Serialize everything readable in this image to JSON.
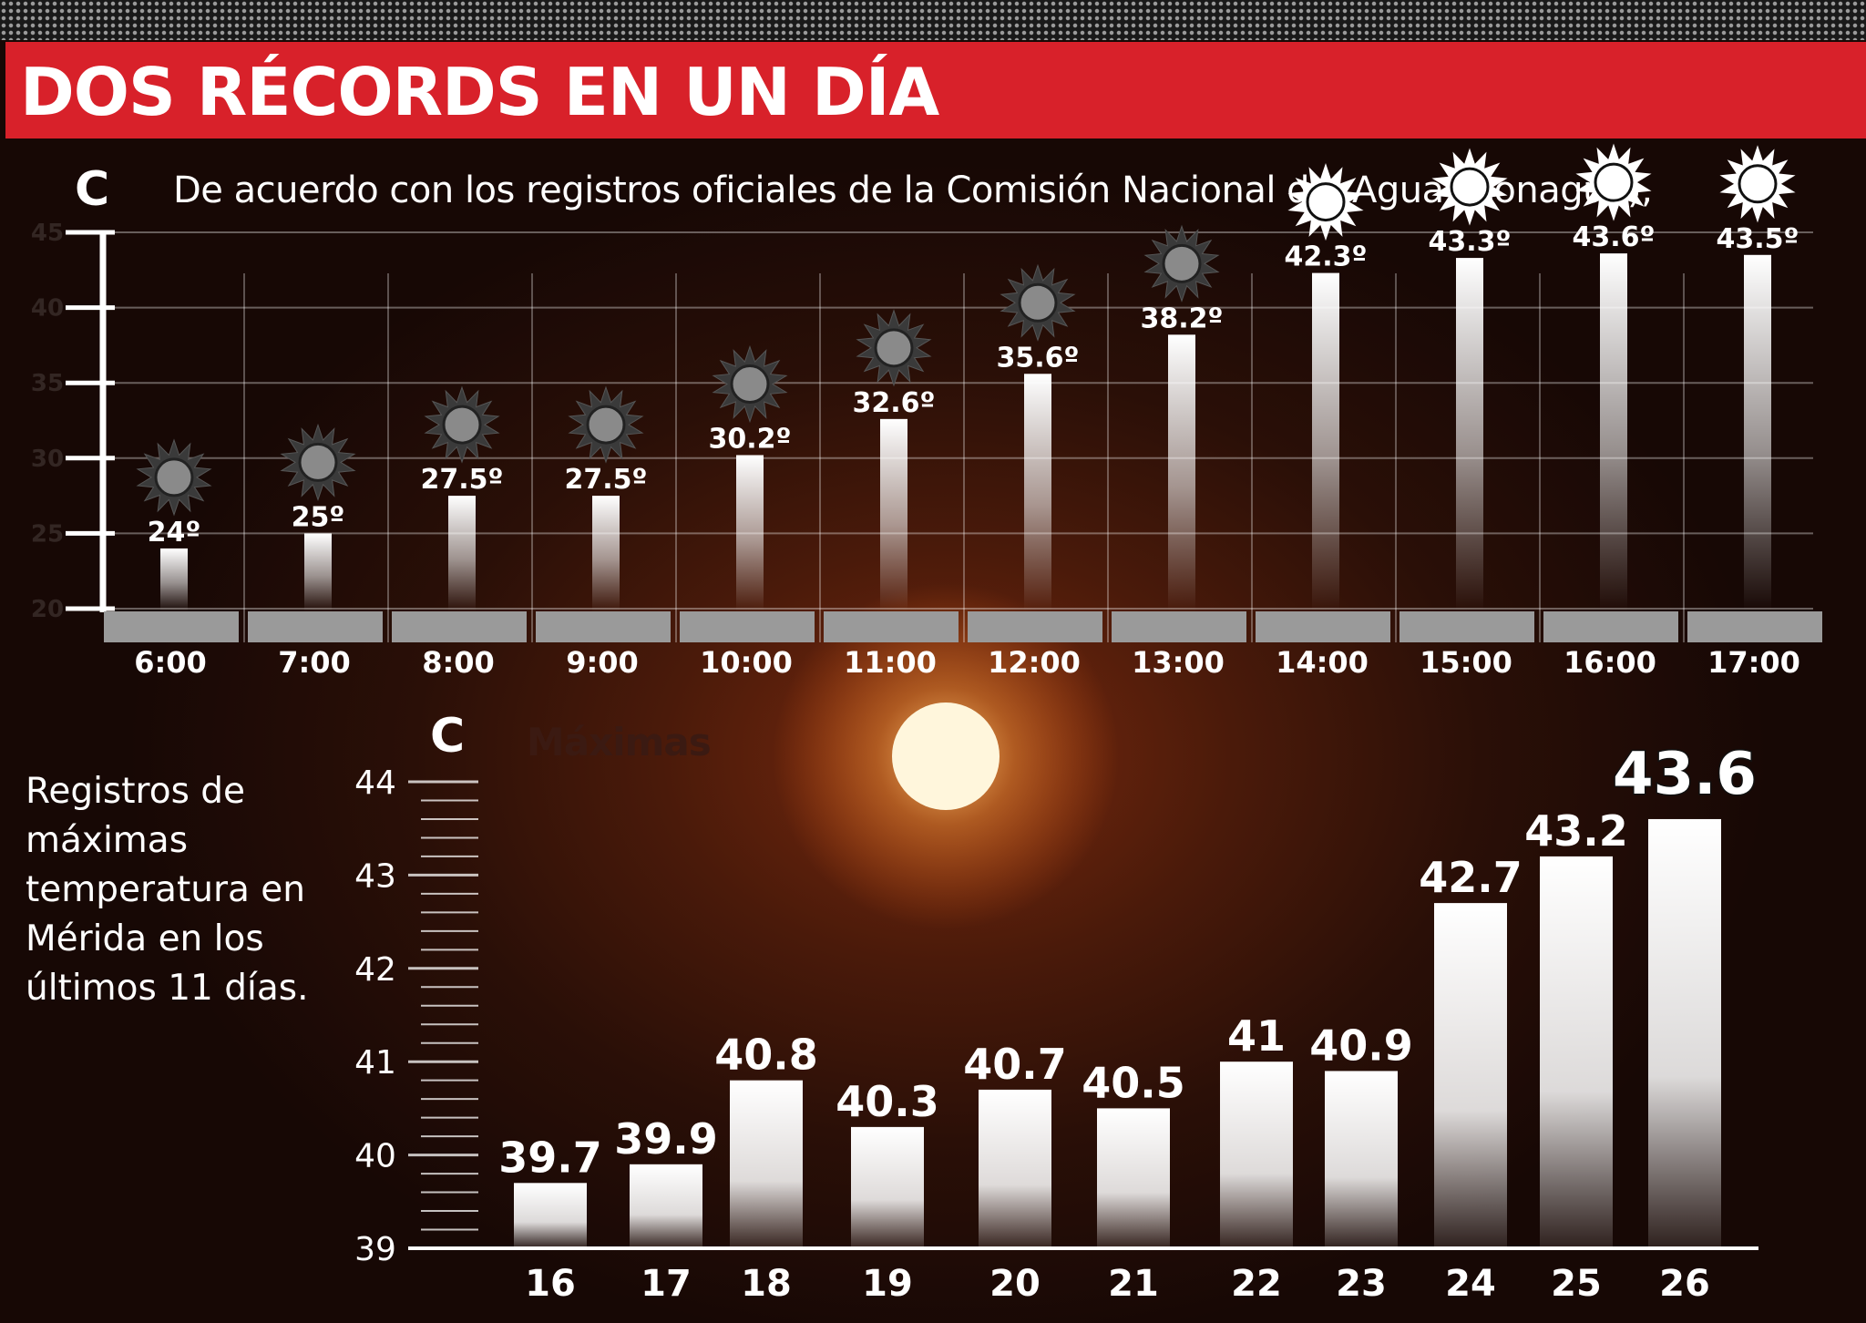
{
  "title": "DOS RÉCORDS EN UN DÍA",
  "intro_text": "De acuerdo con los registros oficiales de la Comisión Nacional del Agua (Conagua),",
  "side_text": "Registros de máximas temperatura en Mérida en los últimos 11 días.",
  "chart_data": [
    {
      "type": "bar",
      "unit_label": "C",
      "title": "",
      "ylim": [
        20,
        45
      ],
      "yticks": [
        20,
        25,
        30,
        35,
        40,
        45
      ],
      "categories": [
        "6:00",
        "7:00",
        "8:00",
        "9:00",
        "10:00",
        "11:00",
        "12:00",
        "13:00",
        "14:00",
        "15:00",
        "16:00",
        "17:00"
      ],
      "values": [
        24,
        25,
        27.5,
        27.5,
        30.2,
        32.6,
        35.6,
        38.2,
        42.3,
        43.3,
        43.6,
        43.5
      ],
      "data_labels": [
        "24º",
        "25º",
        "27.5º",
        "27.5º",
        "30.2º",
        "32.6º",
        "35.6º",
        "38.2º",
        "42.3º",
        "43.3º",
        "43.6º",
        "43.5º"
      ],
      "grid": true
    },
    {
      "type": "bar",
      "unit_label": "C",
      "title": "Máximas",
      "ylim": [
        39,
        44
      ],
      "yticks": [
        39,
        40,
        41,
        42,
        43,
        44
      ],
      "categories": [
        "16",
        "17",
        "18",
        "19",
        "20",
        "21",
        "22",
        "23",
        "24",
        "25",
        "26"
      ],
      "values": [
        39.7,
        39.9,
        40.8,
        40.3,
        40.7,
        40.5,
        41,
        40.9,
        42.7,
        43.2,
        43.6
      ],
      "data_labels": [
        "39.7",
        "39.9",
        "40.8",
        "40.3",
        "40.7",
        "40.5",
        "41",
        "40.9",
        "42.7",
        "43.2",
        "43.6"
      ],
      "highlight_label": "43.6"
    }
  ],
  "colors": {
    "title_bar": "#d8212a",
    "sun": "#fff6dc",
    "bar": "#ffffff",
    "axis": "#ffffff"
  }
}
